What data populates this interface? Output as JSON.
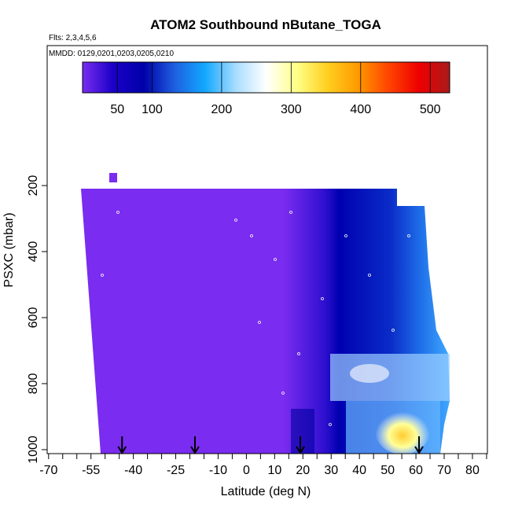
{
  "chart_data": {
    "type": "curtain",
    "title": "ATOM2 Southbound nButane_TOGA",
    "subtitle": "Flts: 2,3,4,5,6",
    "annotation": "MMDD: 0129,0201,0203,0205,0210",
    "xlabel": "Latitude (deg N)",
    "ylabel": "PSXC (mbar)",
    "xlim": [
      -70.5,
      85.3
    ],
    "xticks": [
      -70,
      -55,
      -40,
      -25,
      -10,
      0,
      10,
      20,
      30,
      40,
      50,
      60,
      70,
      80
    ],
    "xminorticks": [
      -65,
      -60,
      -50,
      -45,
      -35,
      -30,
      -20,
      -15,
      -5,
      5,
      15,
      25,
      35,
      45,
      55,
      65,
      75,
      85
    ],
    "ylim": [
      1012,
      -224
    ],
    "yticks": [
      200,
      400,
      600,
      800,
      1000
    ],
    "colorbar": {
      "lim": [
        0,
        528
      ],
      "ticks": [
        50,
        100,
        200,
        300,
        400,
        500
      ],
      "colors": [
        "#7a2cf0",
        "#1a00c8",
        "#0000a8",
        "#1e5fe0",
        "#12a8ff",
        "#a8dcff",
        "#ffffff",
        "#ffff88",
        "#ffd020",
        "#ff9a00",
        "#ff4400",
        "#ee0000",
        "#aa1a1a"
      ]
    },
    "arrows": [
      -44,
      -18.2,
      19.1,
      61.1
    ]
  }
}
